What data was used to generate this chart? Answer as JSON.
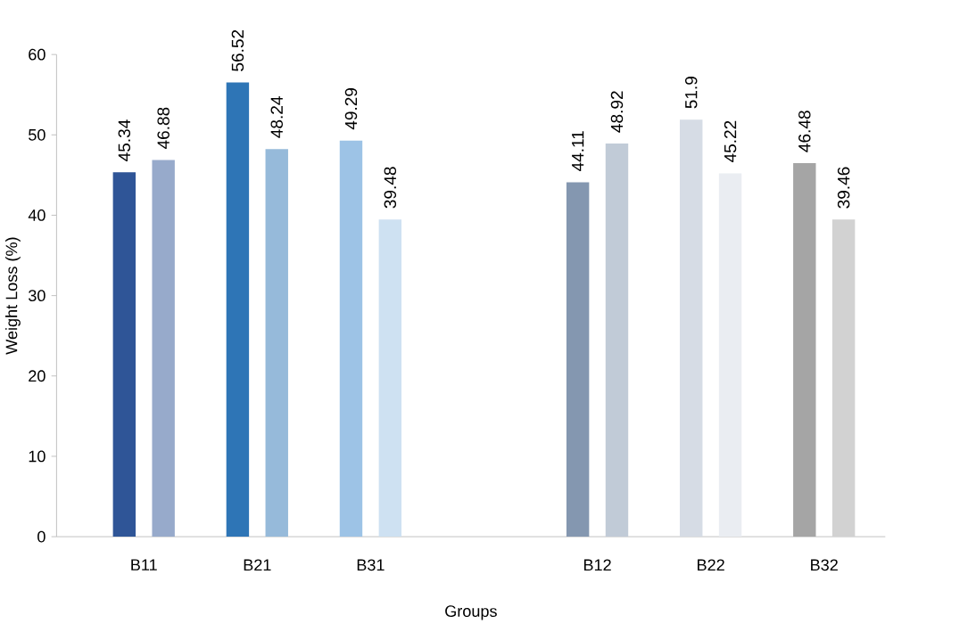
{
  "chart_data": {
    "type": "bar",
    "xlabel": "Groups",
    "ylabel": "Weight  Loss (%)",
    "categories": [
      "B11",
      "B21",
      "B31",
      null,
      "B12",
      "B22",
      "B32"
    ],
    "series": [
      {
        "colors": [
          "#2f5597",
          "#2e75b6",
          "#9dc3e6",
          "#000000",
          "#8497b0",
          "#d6dce5",
          "#a5a5a5"
        ],
        "values": [
          45.34,
          56.52,
          49.29,
          null,
          44.11,
          51.9,
          46.48
        ]
      },
      {
        "colors": [
          "#97aacb",
          "#96bada",
          "#cee1f2",
          "#000000",
          "#c1cbd7",
          "#eaedf2",
          "#d2d2d2"
        ],
        "values": [
          46.88,
          48.24,
          39.48,
          null,
          48.92,
          45.22,
          39.46
        ]
      }
    ],
    "ylim": [
      0,
      60
    ],
    "yticks": [
      0,
      10,
      20,
      30,
      40,
      50,
      60
    ],
    "data_labels": true
  }
}
